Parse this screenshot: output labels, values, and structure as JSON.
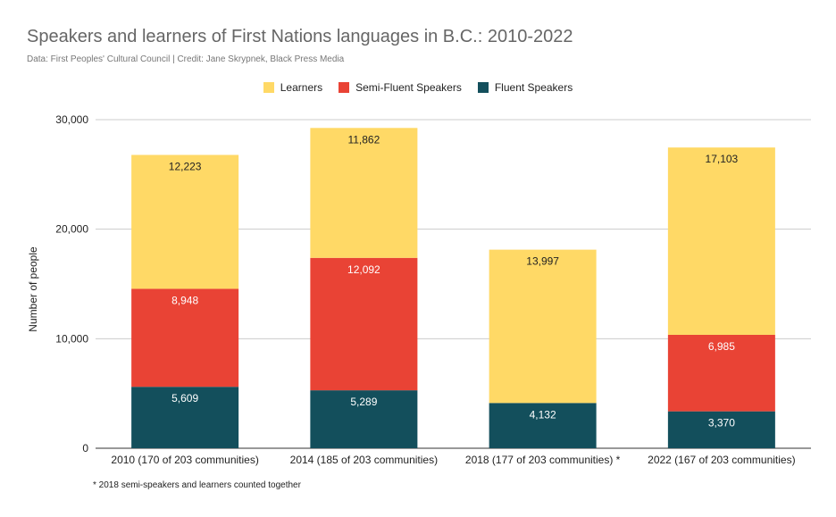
{
  "title": "Speakers and learners of First Nations languages in B.C.: 2010-2022",
  "subtitle": "Data: First Peoples' Cultural Council | Credit: Jane Skrypnek, Black Press Media",
  "footnote": "* 2018 semi-speakers and learners counted together",
  "chart_data": {
    "type": "bar",
    "stacked": true,
    "title": "Speakers and learners of First Nations languages in B.C.: 2010-2022",
    "subtitle": "Data: First Peoples' Cultural Council | Credit: Jane Skrypnek, Black Press Media",
    "xlabel": "",
    "ylabel": "Number of people",
    "ylim": [
      0,
      30000
    ],
    "yticks": [
      0,
      10000,
      20000,
      30000
    ],
    "ytick_labels": [
      "0",
      "10,000",
      "20,000",
      "30,000"
    ],
    "grid": true,
    "legend_position": "top-center",
    "categories": [
      "2010 (170 of 203 communities)",
      "2014 (185 of 203 communities)",
      "2018 (177 of 203 communities) *",
      "2022 (167 of 203 communities)"
    ],
    "series": [
      {
        "name": "Fluent Speakers",
        "color": "#134f5c",
        "values": [
          5609,
          5289,
          4132,
          3370
        ],
        "labels": [
          "5,609",
          "5,289",
          "4,132",
          "3,370"
        ]
      },
      {
        "name": "Semi-Fluent Speakers",
        "color": "#e94335",
        "values": [
          8948,
          12092,
          0,
          6985
        ],
        "labels": [
          "8,948",
          "12,092",
          "",
          "6,985"
        ]
      },
      {
        "name": "Learners",
        "color": "#ffd966",
        "values": [
          12223,
          11862,
          13997,
          17103
        ],
        "labels": [
          "12,223",
          "11,862",
          "13,997",
          "17,103"
        ]
      }
    ],
    "legend_order": [
      "Learners",
      "Semi-Fluent Speakers",
      "Fluent Speakers"
    ]
  }
}
